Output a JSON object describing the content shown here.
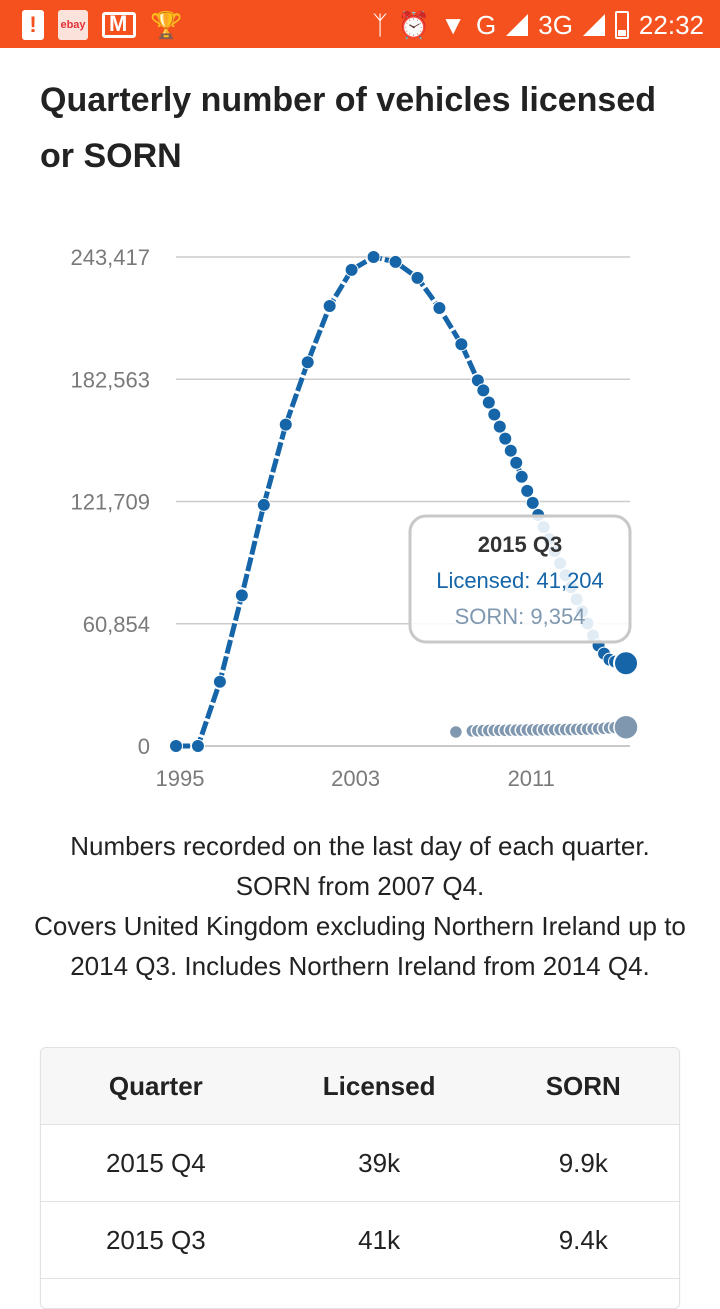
{
  "status_bar": {
    "time": "22:32",
    "network_g": "G",
    "network_3g": "3G",
    "ebay_label": "ebay",
    "icons": [
      "battery-warning-icon",
      "ebay-icon",
      "gmail-icon",
      "trophy-icon",
      "bluetooth-icon",
      "alarm-icon",
      "wifi-icon",
      "signal-icon",
      "battery-icon"
    ]
  },
  "page": {
    "title": "Quarterly number of vehicles licensed or SORN",
    "caption_lines": [
      "Numbers recorded on the last day of each quarter. SORN from 2007 Q4.",
      "Covers United Kingdom excluding Northern Ireland up to 2014 Q3. Includes Northern Ireland from 2014 Q4."
    ]
  },
  "chart_data": {
    "type": "line",
    "title": "",
    "xlabel": "",
    "ylabel": "",
    "x_ticks": [
      "1995",
      "2003",
      "2011"
    ],
    "y_ticks": [
      "0",
      "60,854",
      "121,709",
      "182,563",
      "243,417"
    ],
    "ylim": [
      0,
      243417
    ],
    "grid": true,
    "colors": {
      "licensed": "#1565a8",
      "sorn": "#7f98b0"
    },
    "series": [
      {
        "name": "Licensed",
        "points": [
          [
            1995.0,
            0
          ],
          [
            1996.0,
            0
          ],
          [
            1997.0,
            32000
          ],
          [
            1998.0,
            75000
          ],
          [
            1999.0,
            120000
          ],
          [
            2000.0,
            160000
          ],
          [
            2001.0,
            191000
          ],
          [
            2002.0,
            219000
          ],
          [
            2003.0,
            237000
          ],
          [
            2004.0,
            243417
          ],
          [
            2005.0,
            241000
          ],
          [
            2006.0,
            233000
          ],
          [
            2007.0,
            218000
          ],
          [
            2008.0,
            200000
          ],
          [
            2008.75,
            182000
          ],
          [
            2009.0,
            177000
          ],
          [
            2009.25,
            171000
          ],
          [
            2009.5,
            165000
          ],
          [
            2009.75,
            159000
          ],
          [
            2010.0,
            153000
          ],
          [
            2010.25,
            147000
          ],
          [
            2010.5,
            141000
          ],
          [
            2010.75,
            134000
          ],
          [
            2011.0,
            127000
          ],
          [
            2011.25,
            121000
          ],
          [
            2011.5,
            115000
          ],
          [
            2011.75,
            109000
          ],
          [
            2012.0,
            103000
          ],
          [
            2012.25,
            97000
          ],
          [
            2012.5,
            91000
          ],
          [
            2012.75,
            85000
          ],
          [
            2013.0,
            79000
          ],
          [
            2013.25,
            73000
          ],
          [
            2013.5,
            67000
          ],
          [
            2013.75,
            61000
          ],
          [
            2014.0,
            55000
          ],
          [
            2014.25,
            50000
          ],
          [
            2014.5,
            46000
          ],
          [
            2014.75,
            43000
          ],
          [
            2015.0,
            42000
          ],
          [
            2015.25,
            41500
          ],
          [
            2015.5,
            41204
          ]
        ]
      },
      {
        "name": "SORN",
        "points": [
          [
            2007.75,
            7000
          ],
          [
            2008.5,
            7500
          ],
          [
            2008.75,
            7600
          ],
          [
            2009.0,
            7700
          ],
          [
            2009.25,
            7700
          ],
          [
            2009.5,
            7800
          ],
          [
            2009.75,
            7800
          ],
          [
            2010.0,
            7800
          ],
          [
            2010.25,
            7900
          ],
          [
            2010.5,
            7900
          ],
          [
            2010.75,
            7900
          ],
          [
            2011.0,
            8000
          ],
          [
            2011.25,
            8000
          ],
          [
            2011.5,
            8000
          ],
          [
            2011.75,
            8100
          ],
          [
            2012.0,
            8100
          ],
          [
            2012.25,
            8100
          ],
          [
            2012.5,
            8200
          ],
          [
            2012.75,
            8200
          ],
          [
            2013.0,
            8200
          ],
          [
            2013.25,
            8300
          ],
          [
            2013.5,
            8300
          ],
          [
            2013.75,
            8400
          ],
          [
            2014.0,
            8500
          ],
          [
            2014.25,
            8600
          ],
          [
            2014.5,
            8800
          ],
          [
            2014.75,
            9000
          ],
          [
            2015.0,
            9200
          ],
          [
            2015.25,
            9300
          ],
          [
            2015.5,
            9354
          ]
        ]
      }
    ],
    "tooltip": {
      "title": "2015 Q3",
      "licensed": "Licensed: 41,204",
      "sorn": "SORN: 9,354"
    }
  },
  "table": {
    "headers": [
      "Quarter",
      "Licensed",
      "SORN"
    ],
    "rows": [
      [
        "2015 Q4",
        "39k",
        "9.9k"
      ],
      [
        "2015 Q3",
        "41k",
        "9.4k"
      ]
    ]
  }
}
